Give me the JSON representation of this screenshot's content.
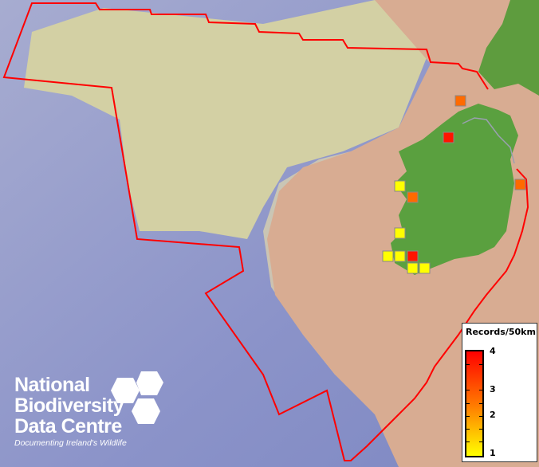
{
  "map": {
    "colors": {
      "deep_sea": "#8c95cc",
      "shelf": "#d9d6a6",
      "shallow": "#d9a890",
      "land_ireland": "#5aa03f",
      "land_other": "#d2a48c",
      "boundary": "#ff0000"
    },
    "records": [
      {
        "value": 3,
        "color": "#ff6a00"
      },
      {
        "value": 4,
        "color": "#ff1400"
      },
      {
        "value": 1,
        "color": "#ffff00"
      },
      {
        "value": 3,
        "color": "#ff6a00"
      },
      {
        "value": 3,
        "color": "#ff6a00"
      },
      {
        "value": 1,
        "color": "#ffff00"
      },
      {
        "value": 1,
        "color": "#ffff00"
      },
      {
        "value": 1,
        "color": "#ffff00"
      },
      {
        "value": 4,
        "color": "#ff1400"
      },
      {
        "value": 1,
        "color": "#ffff00"
      },
      {
        "value": 1,
        "color": "#ffff00"
      }
    ]
  },
  "legend": {
    "title": "Records/50km",
    "labels": [
      "4",
      "3",
      "2",
      "1"
    ],
    "ramp_colors": [
      "#ff0000",
      "#ff7700",
      "#ffff00"
    ]
  },
  "logo": {
    "line1": "National",
    "line2": "Biodiversity",
    "line3": "Data Centre",
    "tagline": "Documenting Ireland's Wildlife"
  }
}
